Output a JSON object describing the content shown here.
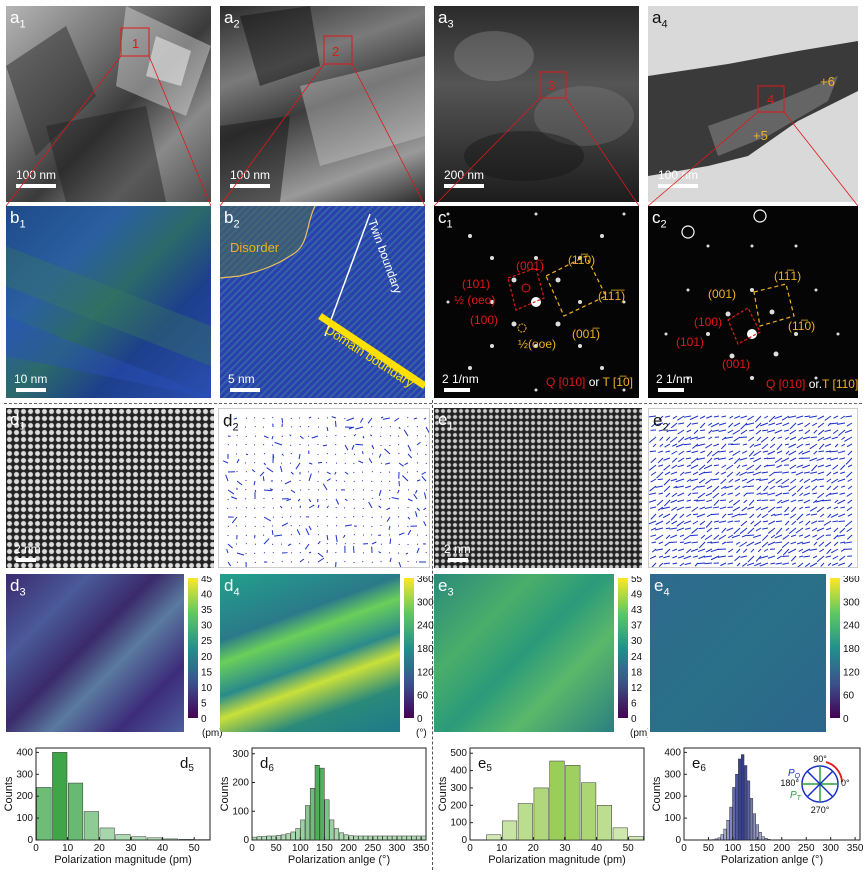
{
  "row_a": [
    {
      "label": "a",
      "sub": "1",
      "scale": "100 nm",
      "marker": "1"
    },
    {
      "label": "a",
      "sub": "2",
      "scale": "100 nm",
      "marker": "2"
    },
    {
      "label": "a",
      "sub": "3",
      "scale": "200 nm",
      "marker": "3"
    },
    {
      "label": "a",
      "sub": "4",
      "scale": "100 nm",
      "marker": "4",
      "ann1": "+6",
      "ann2": "+5"
    }
  ],
  "row_b": [
    {
      "label": "b",
      "sub": "1",
      "scale": "10 nm"
    },
    {
      "label": "b",
      "sub": "2",
      "scale": "5 nm",
      "disorder": "Disorder",
      "twin": "Twin boundary",
      "domain": "Domain boundary"
    },
    {
      "label": "c",
      "sub": "1",
      "scale": "2 1/nm",
      "l101": "(101)",
      "l00m1": "(001̅)",
      "lhalf1": "½ (oeo)",
      "l100": "(100)",
      "lhalf2": "½(ooe)",
      "l1m10": "(11̅0)",
      "l1m1m1": "(11̅1̅)",
      "l00m1b": "(001̅)",
      "legendQ": "Q [010]",
      "legendOr": " or ",
      "legendT": "T [1̅0]"
    },
    {
      "label": "c",
      "sub": "2",
      "scale": "2 1/nm",
      "l001": "(001)",
      "l1m11": "(11̅1)",
      "l100": "(100)",
      "l101": "(101)",
      "l1m10": "(11̅0)",
      "l001b": "(001)",
      "legendQ": "Q [010]",
      "legendOr": " or.",
      "legendT": "T [110]"
    }
  ],
  "row_d": [
    {
      "label": "d",
      "sub": "1",
      "scale": "2 nm"
    },
    {
      "label": "d",
      "sub": "2"
    },
    {
      "label": "e",
      "sub": "1",
      "scale": "2 nm"
    },
    {
      "label": "e",
      "sub": "2"
    }
  ],
  "maps": [
    {
      "label": "d",
      "sub": "3",
      "ticks": [
        "45",
        "40",
        "35",
        "30",
        "25",
        "20",
        "15",
        "10",
        "5",
        "0"
      ],
      "unit": "(pm)"
    },
    {
      "label": "d",
      "sub": "4",
      "ticks": [
        "360",
        "300",
        "240",
        "180",
        "120",
        "60",
        "0"
      ],
      "unit": "(°)"
    },
    {
      "label": "e",
      "sub": "3",
      "ticks": [
        "55",
        "49",
        "43",
        "37",
        "30",
        "24",
        "18",
        "12",
        "6",
        "0"
      ],
      "unit": "(pm)"
    },
    {
      "label": "e",
      "sub": "4",
      "ticks": [
        "360",
        "300",
        "240",
        "180",
        "120",
        "60",
        "0"
      ],
      "unit": "(°)"
    }
  ],
  "chart_data": [
    {
      "type": "bar",
      "label": "d5",
      "xlabel": "Polarization magnitude (pm)",
      "ylabel": "Counts",
      "xlim": [
        0,
        55
      ],
      "ylim": [
        0,
        420
      ],
      "xticks": [
        0,
        10,
        20,
        30,
        40,
        50
      ],
      "yticks": [
        0,
        100,
        200,
        300,
        400
      ],
      "x": [
        2.5,
        7.5,
        12.5,
        17.5,
        22.5,
        27.5,
        32.5,
        37.5,
        42.5,
        47.5,
        52.5
      ],
      "values": [
        240,
        400,
        260,
        130,
        55,
        25,
        15,
        10,
        5,
        3,
        2
      ]
    },
    {
      "type": "bar",
      "label": "d6",
      "xlabel": "Polarization anlge (°)",
      "ylabel": "Counts",
      "xlim": [
        0,
        360
      ],
      "ylim": [
        0,
        320
      ],
      "xticks": [
        0,
        50,
        100,
        150,
        200,
        250,
        300,
        350
      ],
      "yticks": [
        0,
        100,
        200,
        300
      ],
      "x": [
        5,
        15,
        25,
        35,
        45,
        55,
        65,
        75,
        85,
        95,
        105,
        115,
        125,
        135,
        145,
        155,
        165,
        175,
        185,
        195,
        205,
        215,
        225,
        235,
        245,
        255,
        265,
        275,
        285,
        295,
        305,
        315,
        325,
        335,
        345,
        355
      ],
      "values": [
        10,
        12,
        12,
        14,
        14,
        16,
        18,
        22,
        28,
        40,
        70,
        120,
        180,
        260,
        250,
        140,
        70,
        40,
        25,
        18,
        15,
        14,
        14,
        14,
        14,
        14,
        14,
        14,
        14,
        14,
        14,
        14,
        14,
        14,
        14,
        14
      ]
    },
    {
      "type": "bar",
      "label": "e5",
      "xlabel": "Polarization magnitude (pm)",
      "ylabel": "Counts",
      "xlim": [
        0,
        55
      ],
      "ylim": [
        0,
        530
      ],
      "xticks": [
        0,
        10,
        20,
        30,
        40,
        50
      ],
      "yticks": [
        0,
        100,
        200,
        300,
        400,
        500
      ],
      "x": [
        7.5,
        12.5,
        17.5,
        22.5,
        27.5,
        32.5,
        37.5,
        42.5,
        47.5,
        52.5
      ],
      "values": [
        30,
        110,
        210,
        300,
        455,
        430,
        330,
        200,
        70,
        20
      ]
    },
    {
      "type": "bar",
      "label": "e6",
      "xlabel": "Polarization anlge (°)",
      "ylabel": "Counts",
      "xlim": [
        0,
        360
      ],
      "ylim": [
        0,
        420
      ],
      "xticks": [
        0,
        50,
        100,
        150,
        200,
        250,
        300,
        350
      ],
      "yticks": [
        0,
        100,
        200,
        300,
        400
      ],
      "x": [
        60,
        66,
        72,
        78,
        84,
        90,
        96,
        102,
        108,
        114,
        120,
        126,
        132,
        138,
        144,
        150,
        156,
        162,
        168,
        174,
        180
      ],
      "values": [
        2,
        5,
        10,
        25,
        50,
        90,
        150,
        240,
        300,
        370,
        390,
        340,
        270,
        190,
        120,
        70,
        35,
        15,
        8,
        3,
        1
      ],
      "inset": {
        "top": "90°",
        "left": "180°",
        "right": "0°",
        "bottom": "270°",
        "pq": "P",
        "pqsub": "Q",
        "pt": "P",
        "ptsub": "T"
      }
    }
  ],
  "colors": {
    "red": "#e01818",
    "gold": "#f0b020",
    "yellow": "#ffe000",
    "blue": "#1a2fc8",
    "green": "#2e9e3a",
    "darkblue": "#1f2a8a"
  }
}
